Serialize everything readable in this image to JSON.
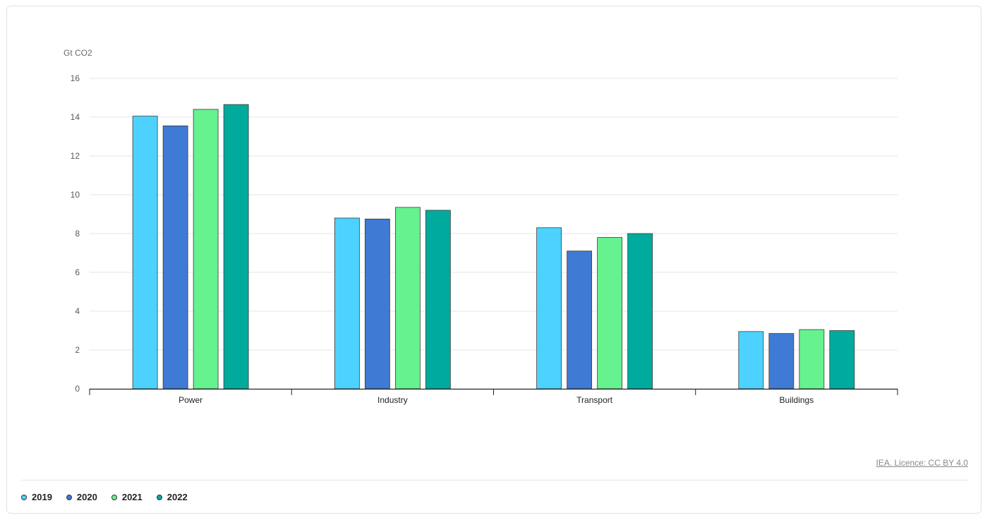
{
  "chart_data": {
    "type": "bar",
    "title": "",
    "xlabel": "",
    "ylabel": "Gt CO2",
    "ylim": [
      0,
      16
    ],
    "yticks": [
      "0",
      "2",
      "4",
      "6",
      "8",
      "10",
      "12",
      "14",
      "16"
    ],
    "categories": [
      "Power",
      "Industry",
      "Transport",
      "Buildings"
    ],
    "series": [
      {
        "name": "2019",
        "color": "#4dd2ff",
        "values": [
          14.05,
          8.8,
          8.3,
          2.95
        ]
      },
      {
        "name": "2020",
        "color": "#3f7ad4",
        "values": [
          13.55,
          8.75,
          7.1,
          2.85
        ]
      },
      {
        "name": "2021",
        "color": "#65f28f",
        "values": [
          14.4,
          9.35,
          7.8,
          3.05
        ]
      },
      {
        "name": "2022",
        "color": "#00ab9e",
        "values": [
          14.65,
          9.2,
          8.0,
          3.0
        ]
      }
    ],
    "grid": true,
    "legend_position": "bottom-left"
  },
  "source": {
    "label": "IEA. Licence: CC BY 4.0"
  }
}
